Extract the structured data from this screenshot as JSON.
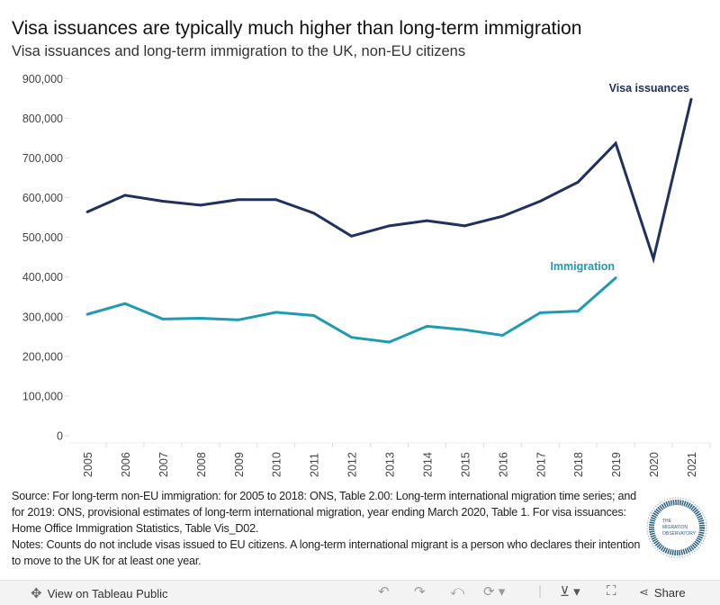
{
  "title": "Visa issuances are typically much higher than long-term immigration",
  "subtitle": "Visa issuances and long-term immigration to the UK, non-EU citizens",
  "chart_data": {
    "type": "line",
    "x": [
      2005,
      2006,
      2007,
      2008,
      2009,
      2010,
      2011,
      2012,
      2013,
      2014,
      2015,
      2016,
      2017,
      2018,
      2019,
      2020,
      2021
    ],
    "x_tick_labels": [
      "2005",
      "2006",
      "2007",
      "2008",
      "2009",
      "2010",
      "2011",
      "2012",
      "2013",
      "2014",
      "2015",
      "2016",
      "2017",
      "2018",
      "2019",
      "2020",
      "2021"
    ],
    "ylim": [
      0,
      900000
    ],
    "y_ticks": [
      0,
      100000,
      200000,
      300000,
      400000,
      500000,
      600000,
      700000,
      800000,
      900000
    ],
    "y_tick_labels": [
      "0",
      "100,000",
      "200,000",
      "300,000",
      "400,000",
      "500,000",
      "600,000",
      "700,000",
      "800,000",
      "900,000"
    ],
    "grid": false,
    "series": [
      {
        "name": "Visa issuances",
        "color": "#22305e",
        "values": [
          564000,
          606000,
          591000,
          581000,
          595000,
          595000,
          561000,
          503000,
          529000,
          542000,
          529000,
          553000,
          591000,
          639000,
          737000,
          446000,
          848000
        ]
      },
      {
        "name": "Immigration",
        "color": "#1e9bb0",
        "values": [
          306000,
          333000,
          294000,
          296000,
          292000,
          311000,
          303000,
          248000,
          236000,
          276000,
          267000,
          253000,
          310000,
          314000,
          398000,
          null,
          null
        ]
      }
    ]
  },
  "notes": {
    "source": "Source: For long-term non-EU immigration: for 2005 to 2018: ONS, Table 2.00: Long-term international migration time series; and for 2019: ONS, provisional estimates of long-term international migration, year ending March 2020, Table 1. For visa issuances: Home Office Immigration Statistics, Table Vis_D02.",
    "notes": "Notes: Counts do not include visas issued to EU citizens. A long-term international migrant is a person who declares their intention to move to the UK for at least one year."
  },
  "logo": {
    "text": "THE MIGRATION OBSERVATORY"
  },
  "toolbar": {
    "view_label": "View on Tableau Public",
    "share_label": "Share",
    "icons": [
      "tableau-icon",
      "undo-icon",
      "redo-icon",
      "revert-icon",
      "refresh-icon",
      "download-icon",
      "fullscreen-icon",
      "share-icon"
    ]
  }
}
